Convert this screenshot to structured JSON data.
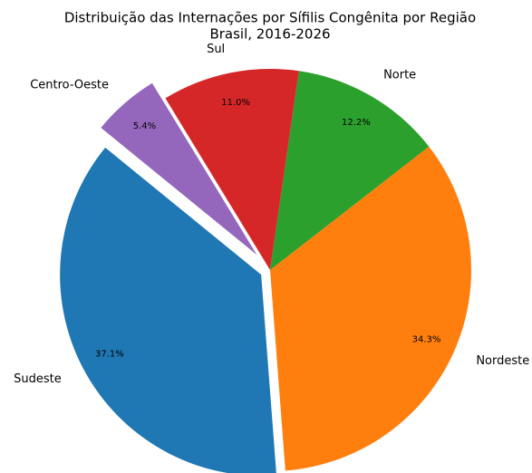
{
  "chart_data": {
    "type": "pie",
    "title": "Distribuição das Internações por Sífilis Congênita por Região",
    "subtitle": "Brasil, 2016-2026",
    "categories": [
      "Sudeste",
      "Nordeste",
      "Norte",
      "Sul",
      "Centro-Oeste"
    ],
    "values": [
      37.1,
      34.3,
      12.2,
      11.0,
      5.4
    ],
    "value_labels": [
      "37.1%",
      "34.3%",
      "12.2%",
      "11.0%",
      "5.4%"
    ],
    "colors": [
      "#1f77b4",
      "#ff7f0e",
      "#2ca02c",
      "#d62728",
      "#9467bd"
    ],
    "explode": [
      0.05,
      0,
      0,
      0,
      0.1
    ]
  }
}
